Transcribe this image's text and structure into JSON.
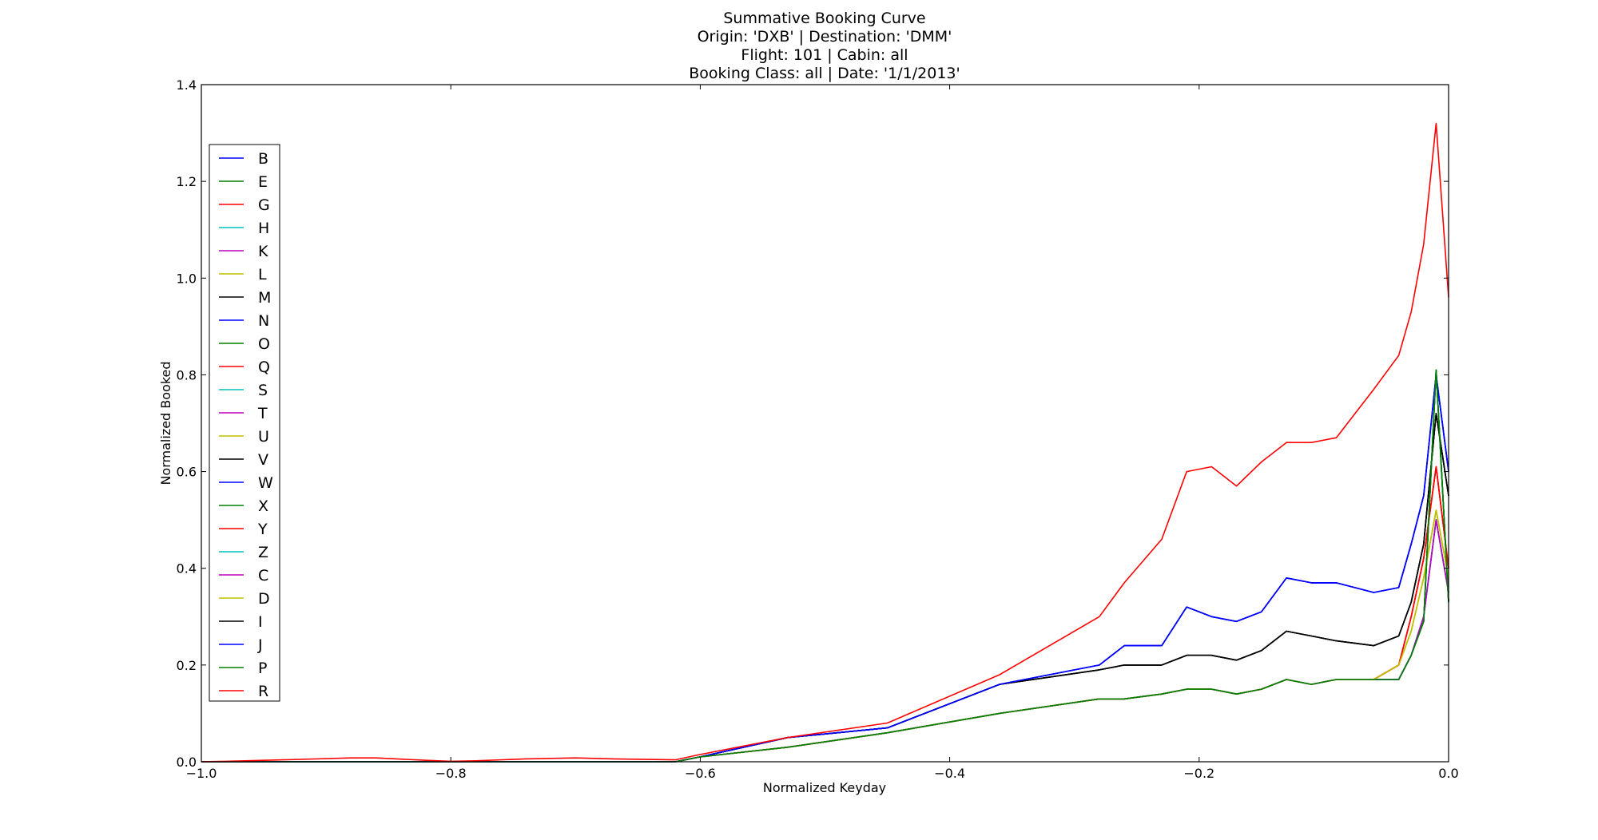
{
  "chart_data": {
    "type": "line",
    "title_lines": [
      "Summative Booking Curve",
      "Origin: 'DXB' | Destination: 'DMM'",
      "Flight: 101 | Cabin: all",
      "Booking Class: all | Date: '1/1/2013'"
    ],
    "xlabel": "Normalized Keyday",
    "ylabel": "Normalized Booked",
    "xlim": [
      -1.0,
      0.0
    ],
    "ylim": [
      0.0,
      1.4
    ],
    "xticks": [
      "−1.0",
      "−0.8",
      "−0.6",
      "−0.4",
      "−0.2",
      "0.0"
    ],
    "xtick_values": [
      -1.0,
      -0.8,
      -0.6,
      -0.4,
      -0.2,
      0.0
    ],
    "yticks": [
      "0.0",
      "0.2",
      "0.4",
      "0.6",
      "0.8",
      "1.0",
      "1.2",
      "1.4"
    ],
    "ytick_values": [
      0.0,
      0.2,
      0.4,
      0.6,
      0.8,
      1.0,
      1.2,
      1.4
    ],
    "grid": false,
    "legend_position": "upper-left",
    "series": [
      {
        "name": "B",
        "color": "#0000ff",
        "profile": "A"
      },
      {
        "name": "E",
        "color": "#008000",
        "profile": "B"
      },
      {
        "name": "G",
        "color": "#ff0000",
        "profile": "C"
      },
      {
        "name": "H",
        "color": "#00bfbf",
        "profile": "A"
      },
      {
        "name": "K",
        "color": "#bf00bf",
        "profile": "B"
      },
      {
        "name": "L",
        "color": "#bfbf00",
        "profile": "D"
      },
      {
        "name": "M",
        "color": "#000000",
        "profile": "E"
      },
      {
        "name": "N",
        "color": "#0000ff",
        "profile": "F"
      },
      {
        "name": "O",
        "color": "#008000",
        "profile": "B"
      },
      {
        "name": "Q",
        "color": "#ff0000",
        "profile": "C"
      },
      {
        "name": "S",
        "color": "#00bfbf",
        "profile": "B"
      },
      {
        "name": "T",
        "color": "#bf00bf",
        "profile": "A"
      },
      {
        "name": "U",
        "color": "#bfbf00",
        "profile": "D"
      },
      {
        "name": "V",
        "color": "#000000",
        "profile": "E"
      },
      {
        "name": "W",
        "color": "#0000ff",
        "profile": "F"
      },
      {
        "name": "X",
        "color": "#008000",
        "profile": "B"
      },
      {
        "name": "Y",
        "color": "#ff0000",
        "profile": "C"
      },
      {
        "name": "Z",
        "color": "#00bfbf",
        "profile": "A"
      },
      {
        "name": "C",
        "color": "#bf00bf",
        "profile": "A"
      },
      {
        "name": "D",
        "color": "#bfbf00",
        "profile": "D"
      },
      {
        "name": "I",
        "color": "#000000",
        "profile": "E"
      },
      {
        "name": "J",
        "color": "#0000ff",
        "profile": "F"
      },
      {
        "name": "P",
        "color": "#008000",
        "profile": "B"
      },
      {
        "name": "R",
        "color": "#ff0000",
        "profile": "G"
      }
    ],
    "profiles": {
      "A": {
        "x": [
          -1.0,
          -0.62,
          -0.6,
          -0.53,
          -0.45,
          -0.36,
          -0.28,
          -0.26,
          -0.23,
          -0.21,
          -0.19,
          -0.17,
          -0.15,
          -0.13,
          -0.11,
          -0.09,
          -0.06,
          -0.04,
          -0.03,
          -0.02,
          -0.01,
          0.0
        ],
        "y": [
          0.0,
          0.0,
          0.01,
          0.03,
          0.06,
          0.1,
          0.13,
          0.13,
          0.14,
          0.15,
          0.15,
          0.14,
          0.15,
          0.17,
          0.16,
          0.17,
          0.17,
          0.17,
          0.22,
          0.3,
          0.5,
          0.35
        ]
      },
      "B": {
        "x": [
          -1.0,
          -0.62,
          -0.6,
          -0.53,
          -0.45,
          -0.36,
          -0.28,
          -0.26,
          -0.23,
          -0.21,
          -0.19,
          -0.17,
          -0.15,
          -0.13,
          -0.11,
          -0.09,
          -0.06,
          -0.04,
          -0.03,
          -0.02,
          -0.01,
          0.0
        ],
        "y": [
          0.0,
          0.0,
          0.01,
          0.03,
          0.06,
          0.1,
          0.13,
          0.13,
          0.14,
          0.15,
          0.15,
          0.14,
          0.15,
          0.17,
          0.16,
          0.17,
          0.17,
          0.17,
          0.22,
          0.29,
          0.81,
          0.33
        ]
      },
      "C": {
        "x": [
          -1.0,
          -0.62,
          -0.6,
          -0.53,
          -0.45,
          -0.36,
          -0.28,
          -0.26,
          -0.23,
          -0.21,
          -0.19,
          -0.17,
          -0.15,
          -0.13,
          -0.11,
          -0.09,
          -0.06,
          -0.04,
          -0.03,
          -0.02,
          -0.01,
          0.0
        ],
        "y": [
          0.0,
          0.0,
          0.01,
          0.03,
          0.06,
          0.1,
          0.13,
          0.13,
          0.14,
          0.15,
          0.15,
          0.14,
          0.15,
          0.17,
          0.16,
          0.17,
          0.17,
          0.2,
          0.3,
          0.42,
          0.61,
          0.4
        ]
      },
      "D": {
        "x": [
          -1.0,
          -0.62,
          -0.6,
          -0.53,
          -0.45,
          -0.36,
          -0.28,
          -0.26,
          -0.23,
          -0.21,
          -0.19,
          -0.17,
          -0.15,
          -0.13,
          -0.11,
          -0.09,
          -0.06,
          -0.04,
          -0.03,
          -0.02,
          -0.01,
          0.0
        ],
        "y": [
          0.0,
          0.0,
          0.01,
          0.03,
          0.06,
          0.1,
          0.13,
          0.13,
          0.14,
          0.15,
          0.15,
          0.14,
          0.15,
          0.17,
          0.16,
          0.17,
          0.17,
          0.2,
          0.27,
          0.38,
          0.52,
          0.38
        ]
      },
      "E": {
        "x": [
          -1.0,
          -0.62,
          -0.6,
          -0.53,
          -0.45,
          -0.36,
          -0.28,
          -0.26,
          -0.23,
          -0.21,
          -0.19,
          -0.17,
          -0.15,
          -0.13,
          -0.11,
          -0.09,
          -0.06,
          -0.04,
          -0.03,
          -0.02,
          -0.01,
          0.0
        ],
        "y": [
          0.0,
          0.0,
          0.01,
          0.05,
          0.07,
          0.16,
          0.19,
          0.2,
          0.2,
          0.22,
          0.22,
          0.21,
          0.23,
          0.27,
          0.26,
          0.25,
          0.24,
          0.26,
          0.33,
          0.45,
          0.72,
          0.55
        ]
      },
      "F": {
        "x": [
          -1.0,
          -0.62,
          -0.6,
          -0.53,
          -0.45,
          -0.36,
          -0.28,
          -0.26,
          -0.23,
          -0.21,
          -0.19,
          -0.17,
          -0.15,
          -0.13,
          -0.11,
          -0.09,
          -0.06,
          -0.04,
          -0.03,
          -0.02,
          -0.01,
          0.0
        ],
        "y": [
          0.0,
          0.0,
          0.01,
          0.05,
          0.07,
          0.16,
          0.2,
          0.24,
          0.24,
          0.32,
          0.3,
          0.29,
          0.31,
          0.38,
          0.37,
          0.37,
          0.35,
          0.36,
          0.45,
          0.55,
          0.8,
          0.6
        ]
      },
      "G": {
        "x": [
          -1.0,
          -0.98,
          -0.95,
          -0.92,
          -0.88,
          -0.86,
          -0.82,
          -0.8,
          -0.78,
          -0.74,
          -0.7,
          -0.67,
          -0.62,
          -0.6,
          -0.53,
          -0.45,
          -0.36,
          -0.28,
          -0.26,
          -0.23,
          -0.21,
          -0.19,
          -0.17,
          -0.15,
          -0.13,
          -0.11,
          -0.09,
          -0.06,
          -0.04,
          -0.03,
          -0.02,
          -0.01,
          0.0
        ],
        "y": [
          0.0,
          0.001,
          0.003,
          0.005,
          0.008,
          0.008,
          0.003,
          0.001,
          0.002,
          0.006,
          0.008,
          0.006,
          0.004,
          0.015,
          0.05,
          0.08,
          0.18,
          0.3,
          0.37,
          0.46,
          0.6,
          0.61,
          0.57,
          0.62,
          0.66,
          0.66,
          0.67,
          0.77,
          0.84,
          0.93,
          1.07,
          1.32,
          0.96
        ]
      }
    }
  }
}
